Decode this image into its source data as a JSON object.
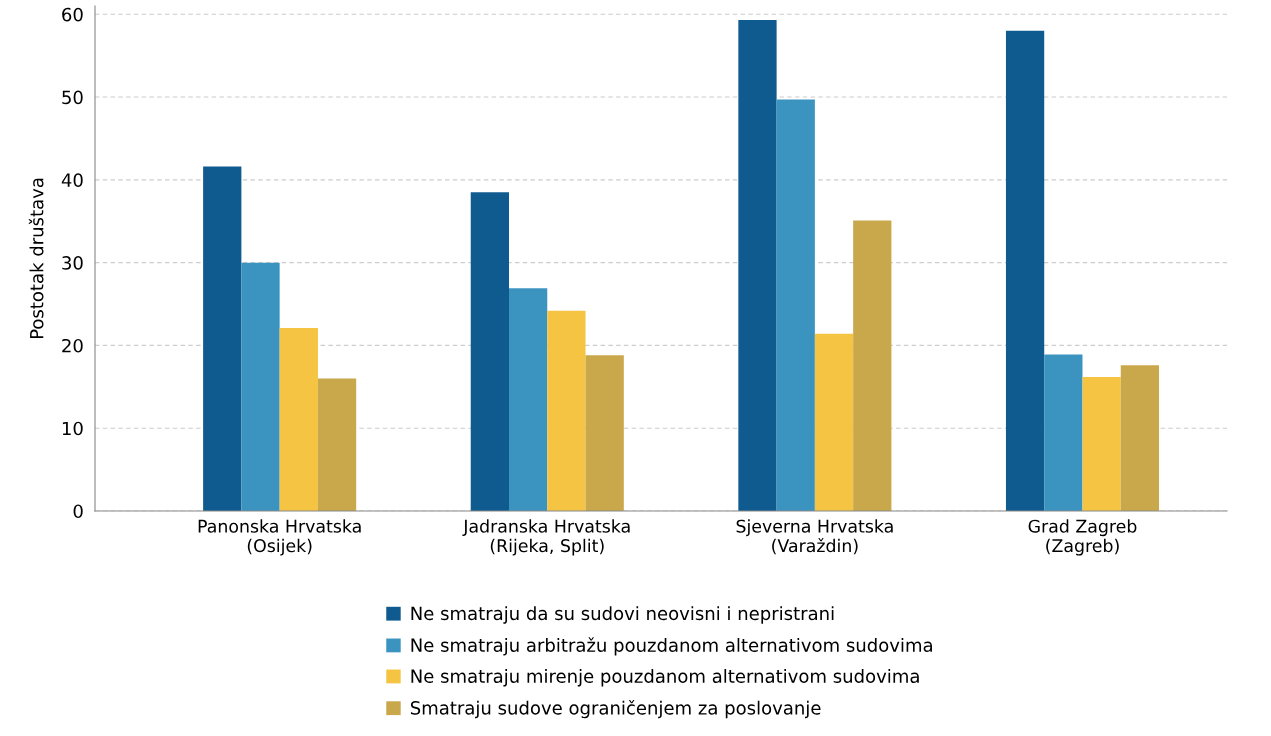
{
  "chart_data": {
    "type": "bar",
    "ylabel": "Postotak društava",
    "categories": [
      "Panonska Hrvatska\n(Osijek)",
      "Jadranska Hrvatska\n(Rijeka, Split)",
      "Sjeverna Hrvatska\n(Varaždin)",
      "Grad Zagreb\n(Zagreb)"
    ],
    "series": [
      {
        "name": "Ne smatraju da su sudovi neovisni i nepristrani",
        "color": "#0f5a8e",
        "values": [
          41.6,
          38.5,
          59.3,
          58.0
        ]
      },
      {
        "name": "Ne smatraju arbitražu pouzdanom alternativom sudovima",
        "color": "#3b94c0",
        "values": [
          30.0,
          26.9,
          49.7,
          18.9
        ]
      },
      {
        "name": "Ne smatraju mirenje pouzdanom alternativom sudovima",
        "color": "#f5c443",
        "values": [
          22.1,
          24.2,
          21.4,
          16.2
        ]
      },
      {
        "name": "Smatraju sudove ograničenjem za poslovanje",
        "color": "#c9a84b",
        "values": [
          16.0,
          18.8,
          35.1,
          17.6
        ]
      }
    ],
    "ylim": [
      0,
      61
    ],
    "yticks": [
      0,
      10,
      20,
      30,
      40,
      50,
      60
    ],
    "grid": "y",
    "legend": "bottom"
  }
}
